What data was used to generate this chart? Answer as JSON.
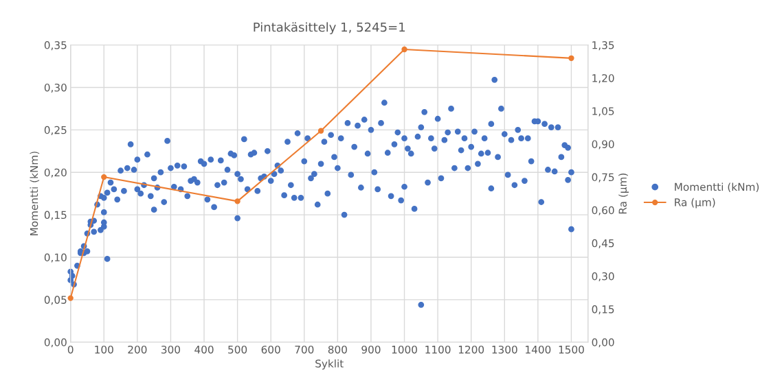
{
  "chart_data": {
    "type": "scatter",
    "title": "Pintakäsittely 1, 5245=1",
    "xlabel": "Syklit",
    "ylabel": "Momentti (kNm)",
    "y2label": "Ra (µm)",
    "xlim": [
      0,
      1550
    ],
    "xticks": [
      0,
      100,
      200,
      300,
      400,
      500,
      600,
      700,
      800,
      900,
      1000,
      1100,
      1200,
      1300,
      1400,
      1500
    ],
    "ylim": [
      0,
      0.35
    ],
    "yticks": [
      {
        "value": 0,
        "label": "0,00"
      },
      {
        "value": 0.05,
        "label": "0,05"
      },
      {
        "value": 0.1,
        "label": "0,10"
      },
      {
        "value": 0.15,
        "label": "0,15"
      },
      {
        "value": 0.2,
        "label": "0,20"
      },
      {
        "value": 0.25,
        "label": "0,25"
      },
      {
        "value": 0.3,
        "label": "0,30"
      },
      {
        "value": 0.35,
        "label": "0,35"
      }
    ],
    "y2lim": [
      0,
      1.35
    ],
    "y2ticks": [
      {
        "value": 0,
        "label": "0,00"
      },
      {
        "value": 0.15,
        "label": "0,15"
      },
      {
        "value": 0.3,
        "label": "0,30"
      },
      {
        "value": 0.45,
        "label": "0,45"
      },
      {
        "value": 0.6,
        "label": "0,60"
      },
      {
        "value": 0.75,
        "label": "0,75"
      },
      {
        "value": 0.9,
        "label": "0,90"
      },
      {
        "value": 1.05,
        "label": "1,05"
      },
      {
        "value": 1.2,
        "label": "1,20"
      },
      {
        "value": 1.35,
        "label": "1,35"
      }
    ],
    "grid": true,
    "legend": "right",
    "marker": "circle",
    "series": [
      {
        "name": "Momentti (kNm)",
        "color": "#4472c4",
        "x": [
          0,
          0,
          5,
          10,
          20,
          30,
          30,
          40,
          40,
          50,
          50,
          60,
          60,
          70,
          70,
          80,
          90,
          90,
          100,
          100,
          100,
          100,
          110,
          110,
          120,
          130,
          140,
          150,
          160,
          170,
          180,
          190,
          200,
          200,
          210,
          220,
          230,
          240,
          250,
          250,
          260,
          270,
          280,
          290,
          300,
          310,
          320,
          330,
          340,
          350,
          360,
          370,
          380,
          390,
          400,
          410,
          420,
          430,
          440,
          450,
          460,
          470,
          480,
          490,
          500,
          500,
          510,
          520,
          530,
          540,
          550,
          560,
          570,
          580,
          590,
          600,
          610,
          620,
          630,
          640,
          650,
          660,
          670,
          680,
          690,
          700,
          710,
          720,
          730,
          740,
          750,
          760,
          770,
          780,
          790,
          800,
          810,
          820,
          830,
          840,
          850,
          860,
          870,
          880,
          890,
          900,
          910,
          920,
          930,
          940,
          950,
          960,
          970,
          980,
          990,
          1000,
          1000,
          1010,
          1020,
          1030,
          1040,
          1050,
          1050,
          1060,
          1070,
          1080,
          1090,
          1100,
          1110,
          1120,
          1130,
          1140,
          1150,
          1160,
          1170,
          1180,
          1190,
          1200,
          1210,
          1220,
          1230,
          1240,
          1250,
          1260,
          1260,
          1270,
          1280,
          1290,
          1300,
          1310,
          1320,
          1330,
          1340,
          1350,
          1360,
          1370,
          1380,
          1390,
          1400,
          1410,
          1420,
          1430,
          1440,
          1450,
          1460,
          1470,
          1480,
          1490,
          1490,
          1500,
          1500
        ],
        "values": [
          0.083,
          0.073,
          0.078,
          0.068,
          0.09,
          0.105,
          0.107,
          0.113,
          0.105,
          0.107,
          0.128,
          0.138,
          0.142,
          0.13,
          0.143,
          0.162,
          0.132,
          0.172,
          0.136,
          0.141,
          0.153,
          0.17,
          0.098,
          0.176,
          0.188,
          0.18,
          0.168,
          0.202,
          0.178,
          0.205,
          0.233,
          0.203,
          0.18,
          0.215,
          0.175,
          0.185,
          0.221,
          0.172,
          0.156,
          0.193,
          0.182,
          0.2,
          0.165,
          0.237,
          0.205,
          0.183,
          0.208,
          0.18,
          0.207,
          0.172,
          0.19,
          0.192,
          0.188,
          0.213,
          0.21,
          0.168,
          0.215,
          0.159,
          0.185,
          0.214,
          0.188,
          0.203,
          0.222,
          0.22,
          0.146,
          0.198,
          0.192,
          0.239,
          0.18,
          0.221,
          0.223,
          0.178,
          0.193,
          0.195,
          0.225,
          0.19,
          0.198,
          0.208,
          0.202,
          0.173,
          0.236,
          0.185,
          0.17,
          0.246,
          0.17,
          0.213,
          0.24,
          0.193,
          0.198,
          0.162,
          0.21,
          0.236,
          0.175,
          0.244,
          0.218,
          0.205,
          0.24,
          0.15,
          0.258,
          0.197,
          0.23,
          0.255,
          0.182,
          0.262,
          0.222,
          0.25,
          0.2,
          0.18,
          0.258,
          0.282,
          0.223,
          0.172,
          0.233,
          0.247,
          0.167,
          0.24,
          0.183,
          0.228,
          0.222,
          0.157,
          0.242,
          0.044,
          0.253,
          0.271,
          0.188,
          0.24,
          0.228,
          0.263,
          0.193,
          0.238,
          0.247,
          0.275,
          0.205,
          0.248,
          0.226,
          0.24,
          0.205,
          0.23,
          0.248,
          0.21,
          0.222,
          0.24,
          0.223,
          0.181,
          0.257,
          0.309,
          0.218,
          0.275,
          0.245,
          0.197,
          0.238,
          0.185,
          0.25,
          0.24,
          0.19,
          0.24,
          0.213,
          0.26,
          0.26,
          0.165,
          0.257,
          0.203,
          0.253,
          0.201,
          0.253,
          0.218,
          0.232,
          0.191,
          0.229,
          0.2,
          0.133
        ]
      },
      {
        "name": "Ra (µm)",
        "type": "line",
        "axis": "y2",
        "color": "#ed7d31",
        "x": [
          0,
          100,
          500,
          750,
          1000,
          1500
        ],
        "values": [
          0.2,
          0.75,
          0.64,
          0.96,
          1.33,
          1.29
        ]
      }
    ]
  }
}
